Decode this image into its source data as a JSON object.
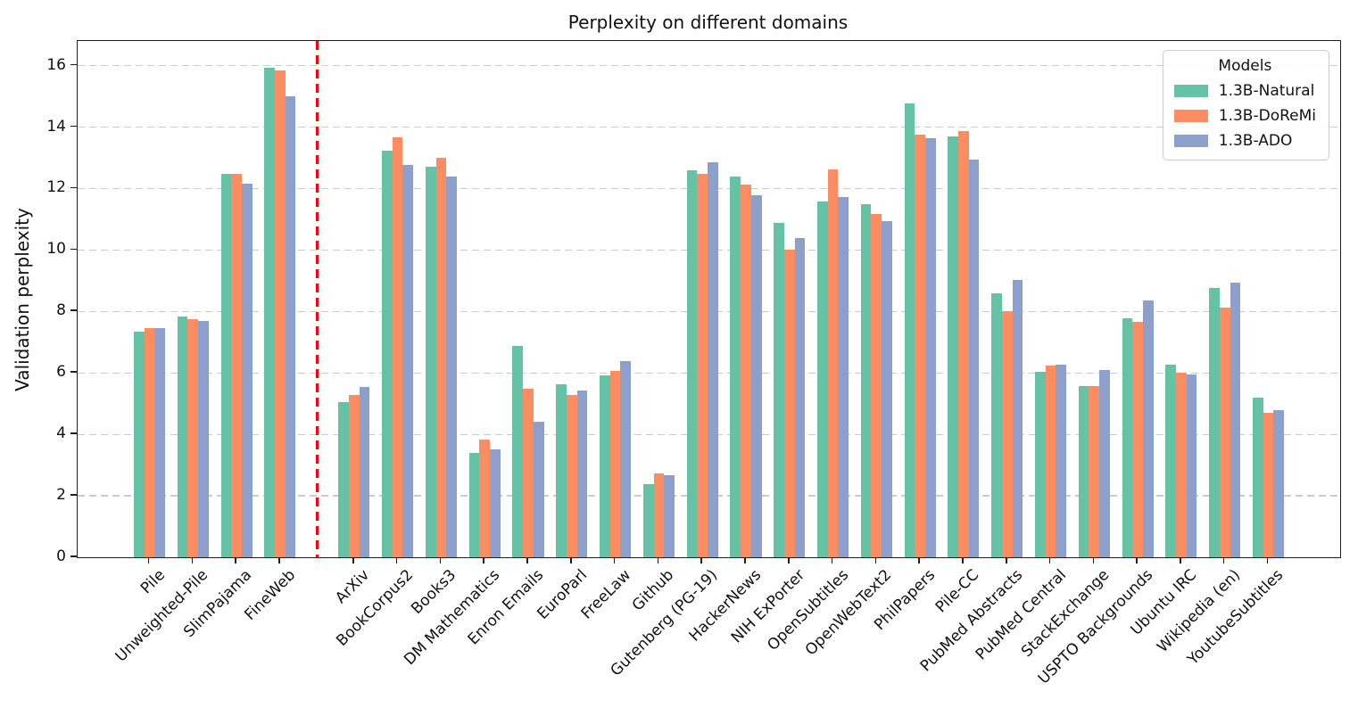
{
  "chart_data": {
    "type": "bar",
    "title": "Perplexity on different domains",
    "xlabel": "",
    "ylabel": "Validation perplexity",
    "ylim": [
      0,
      16.8
    ],
    "yticks": [
      0,
      2,
      4,
      6,
      8,
      10,
      12,
      14,
      16
    ],
    "grid": "horizontal dashed gray lines",
    "legend_title": "Models",
    "legend_position": "upper right",
    "divider": {
      "style": "vertical red dashed line separating aggregate corpora from individual domains",
      "after_category_index": 3,
      "color": "#ff0000"
    },
    "categories": [
      "Pile",
      "Unweighted-Pile",
      "SlimPajama",
      "FineWeb",
      "ArXiv",
      "BookCorpus2",
      "Books3",
      "DM Mathematics",
      "Enron Emails",
      "EuroParl",
      "FreeLaw",
      "Github",
      "Gutenberg (PG-19)",
      "HackerNews",
      "NIH ExPorter",
      "OpenSubtitles",
      "OpenWebText2",
      "PhilPapers",
      "Pile-CC",
      "PubMed Abstracts",
      "PubMed Central",
      "StackExchange",
      "USPTO Backgrounds",
      "Ubuntu IRC",
      "Wikipedia (en)",
      "YoutubeSubtitles"
    ],
    "series": [
      {
        "name": "1.3B-Natural",
        "color": "#66c2a5",
        "values": [
          7.35,
          7.83,
          12.48,
          15.93,
          5.05,
          13.23,
          12.72,
          3.4,
          6.87,
          5.62,
          5.91,
          2.37,
          12.6,
          12.4,
          10.87,
          11.59,
          11.5,
          14.78,
          13.7,
          8.58,
          6.05,
          5.58,
          7.78,
          6.26,
          8.77,
          5.2
        ]
      },
      {
        "name": "1.3B-DoReMi",
        "color": "#fc8d62",
        "values": [
          7.47,
          7.74,
          12.47,
          15.85,
          5.28,
          13.68,
          13.01,
          3.84,
          5.49,
          5.28,
          6.07,
          2.73,
          12.47,
          12.14,
          10.01,
          12.62,
          11.16,
          13.74,
          13.88,
          8.01,
          6.24,
          5.56,
          7.66,
          6.02,
          8.13,
          4.7
        ]
      },
      {
        "name": "1.3B-ADO",
        "color": "#8da0cb",
        "values": [
          7.47,
          7.7,
          12.16,
          15.0,
          5.53,
          12.76,
          12.4,
          3.51,
          4.4,
          5.42,
          6.39,
          2.67,
          12.86,
          11.79,
          10.4,
          11.73,
          10.93,
          13.64,
          12.93,
          9.03,
          6.26,
          6.08,
          8.37,
          5.94,
          8.95,
          4.78
        ]
      }
    ],
    "style": {
      "grid_color": "#cbcbcb",
      "axis_color": "#1f1f1f",
      "background": "#ffffff"
    }
  }
}
